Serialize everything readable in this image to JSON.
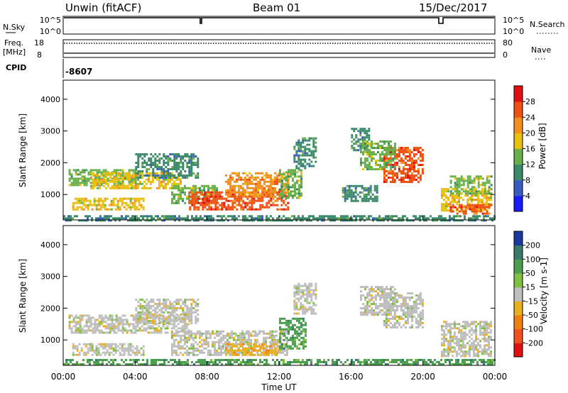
{
  "header": {
    "station": "Unwin (fitACF)",
    "beam": "Beam 01",
    "date": "15/Dec/2017"
  },
  "top_panels": {
    "nsky_label": "N.Sky",
    "nsky_ticks": [
      "10^5",
      "10^0"
    ],
    "nsearch_label": "N.Search",
    "nsearch_ticks": [
      "10^5",
      "10^0"
    ],
    "freq_label": "Freq.",
    "freq_unit": "[MHz]",
    "freq_ticks": [
      "18",
      "8"
    ],
    "nave_label": "Nave",
    "nave_ticks": [
      "80",
      "0"
    ],
    "cpid_label": "CPID",
    "cpid_value": "-8607"
  },
  "chart_data": [
    {
      "type": "heatmap",
      "name": "power",
      "ylabel": "Slant Range [km]",
      "yticks": [
        "1000",
        "2000",
        "3000",
        "4000"
      ],
      "ylim": [
        200,
        4600
      ],
      "xlim_hours": [
        0,
        24
      ],
      "colorbar": {
        "label": "Power [dB]",
        "ticks": [
          "4",
          "8",
          "12",
          "16",
          "20",
          "24",
          "28"
        ],
        "range": [
          0,
          32
        ],
        "colors": [
          "#1a1aff",
          "#3a5bbf",
          "#3a8a6a",
          "#6ab04a",
          "#e8c010",
          "#f09020",
          "#f05010",
          "#e01010"
        ]
      },
      "regions": [
        {
          "h0": 0.3,
          "h1": 4.0,
          "r0": 1300,
          "r1": 1800,
          "level": 12
        },
        {
          "h0": 1.5,
          "h1": 6.5,
          "r0": 1200,
          "r1": 1700,
          "level": 18
        },
        {
          "h0": 0.5,
          "h1": 4.5,
          "r0": 500,
          "r1": 900,
          "level": 16
        },
        {
          "h0": 4.0,
          "h1": 7.5,
          "r0": 1500,
          "r1": 2300,
          "level": 10
        },
        {
          "h0": 6.0,
          "h1": 8.5,
          "r0": 700,
          "r1": 1300,
          "level": 14
        },
        {
          "h0": 7.0,
          "h1": 12.5,
          "r0": 500,
          "r1": 1100,
          "level": 26
        },
        {
          "h0": 9.0,
          "h1": 12.5,
          "r0": 900,
          "r1": 1700,
          "level": 22
        },
        {
          "h0": 12.0,
          "h1": 13.2,
          "r0": 900,
          "r1": 1800,
          "level": 14
        },
        {
          "h0": 12.8,
          "h1": 14.0,
          "r0": 1800,
          "r1": 2800,
          "level": 10
        },
        {
          "h0": 16.0,
          "h1": 17.0,
          "r0": 2400,
          "r1": 3100,
          "level": 10
        },
        {
          "h0": 17.8,
          "h1": 20.0,
          "r0": 1400,
          "r1": 2500,
          "level": 24
        },
        {
          "h0": 16.5,
          "h1": 18.5,
          "r0": 1800,
          "r1": 2700,
          "level": 12
        },
        {
          "h0": 15.5,
          "h1": 17.5,
          "r0": 800,
          "r1": 1300,
          "level": 8
        },
        {
          "h0": 21.0,
          "h1": 23.8,
          "r0": 500,
          "r1": 1200,
          "level": 16
        },
        {
          "h0": 21.5,
          "h1": 23.8,
          "r0": 1000,
          "r1": 1600,
          "level": 12
        },
        {
          "h0": 21.5,
          "h1": 23.8,
          "r0": 400,
          "r1": 700,
          "level": 26
        },
        {
          "h0": 0.0,
          "h1": 24.0,
          "r0": 200,
          "r1": 350,
          "level": 8
        }
      ]
    },
    {
      "type": "heatmap",
      "name": "velocity",
      "ylabel": "Slant Range [km]",
      "yticks": [
        "1000",
        "2000",
        "3000",
        "4000"
      ],
      "ylim": [
        200,
        4600
      ],
      "xlim_hours": [
        0,
        24
      ],
      "xticks": [
        "00:00",
        "04:00",
        "08:00",
        "12:00",
        "16:00",
        "20:00",
        "00:00"
      ],
      "xlabel": "Time UT",
      "colorbar": {
        "label": "Velocity [m s-1]",
        "ticks": [
          "200",
          "100",
          "50",
          "15",
          "-15",
          "-50",
          "-100",
          "-200"
        ],
        "colors": [
          "#1a3aa0",
          "#3a7a6a",
          "#4aa050",
          "#80c040",
          "#bebebe",
          "#e8b020",
          "#f08010",
          "#f05020",
          "#e01010"
        ]
      },
      "regions": [
        {
          "h0": 0.3,
          "h1": 7.0,
          "r0": 1200,
          "r1": 1800,
          "level": 15
        },
        {
          "h0": 0.5,
          "h1": 4.5,
          "r0": 500,
          "r1": 900,
          "level": 15
        },
        {
          "h0": 4.0,
          "h1": 7.5,
          "r0": 1500,
          "r1": 2300,
          "level": 15
        },
        {
          "h0": 6.0,
          "h1": 12.5,
          "r0": 500,
          "r1": 1300,
          "level": 15
        },
        {
          "h0": 9.0,
          "h1": 12.0,
          "r0": 500,
          "r1": 900,
          "level": -50
        },
        {
          "h0": 12.0,
          "h1": 13.5,
          "r0": 700,
          "r1": 1700,
          "level": 50
        },
        {
          "h0": 12.8,
          "h1": 14.0,
          "r0": 1800,
          "r1": 2800,
          "level": 15
        },
        {
          "h0": 17.8,
          "h1": 20.0,
          "r0": 1400,
          "r1": 2500,
          "level": 15
        },
        {
          "h0": 16.5,
          "h1": 18.5,
          "r0": 1800,
          "r1": 2700,
          "level": 15
        },
        {
          "h0": 21.0,
          "h1": 23.8,
          "r0": 500,
          "r1": 1600,
          "level": 15
        },
        {
          "h0": 0.0,
          "h1": 24.0,
          "r0": 200,
          "r1": 400,
          "level": 50
        }
      ]
    }
  ]
}
